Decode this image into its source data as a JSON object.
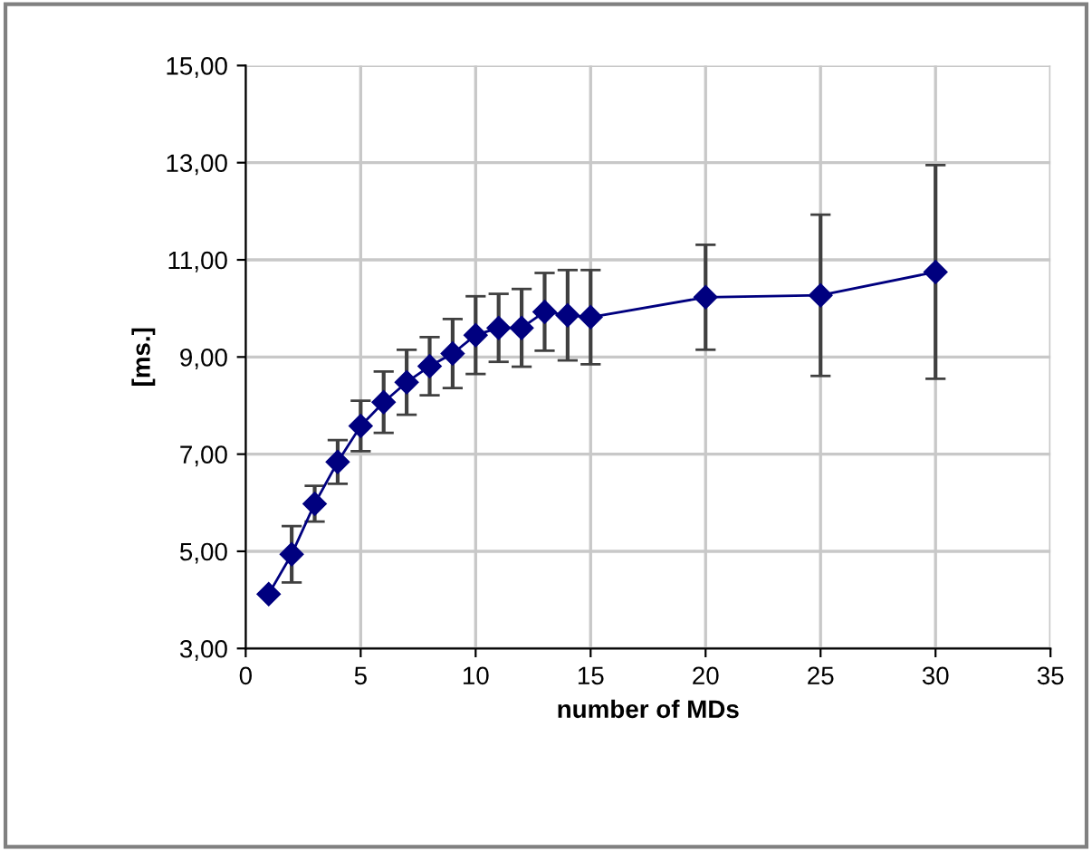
{
  "chart_data": {
    "type": "line",
    "xlabel": "number of MDs",
    "ylabel": "[ms.]",
    "x": [
      1,
      2,
      3,
      4,
      5,
      6,
      7,
      8,
      9,
      10,
      11,
      12,
      13,
      14,
      15,
      20,
      25,
      30
    ],
    "series": [
      {
        "color": "#00007f",
        "values": [
          4.12,
          4.94,
          5.98,
          6.84,
          7.58,
          8.07,
          8.48,
          8.81,
          9.07,
          9.45,
          9.6,
          9.6,
          9.93,
          9.86,
          9.82,
          10.23,
          10.27,
          10.75
        ],
        "errors": [
          null,
          0.58,
          0.37,
          0.45,
          0.52,
          0.63,
          0.67,
          0.6,
          0.71,
          0.8,
          0.7,
          0.8,
          0.8,
          0.93,
          0.97,
          1.08,
          1.66,
          2.2
        ]
      }
    ],
    "xlim": [
      0,
      35
    ],
    "xticks": [
      0,
      5,
      10,
      15,
      20,
      25,
      30,
      35
    ],
    "ylim": [
      3,
      15
    ],
    "yticks": [
      {
        "value": 3,
        "label": "3,00"
      },
      {
        "value": 5,
        "label": "5,00"
      },
      {
        "value": 7,
        "label": "7,00"
      },
      {
        "value": 9,
        "label": "9,00"
      },
      {
        "value": 11,
        "label": "11,00"
      },
      {
        "value": 13,
        "label": "13,00"
      },
      {
        "value": 15,
        "label": "15,00"
      }
    ],
    "grid": true,
    "marker": "diamond",
    "line_style": "solid"
  }
}
